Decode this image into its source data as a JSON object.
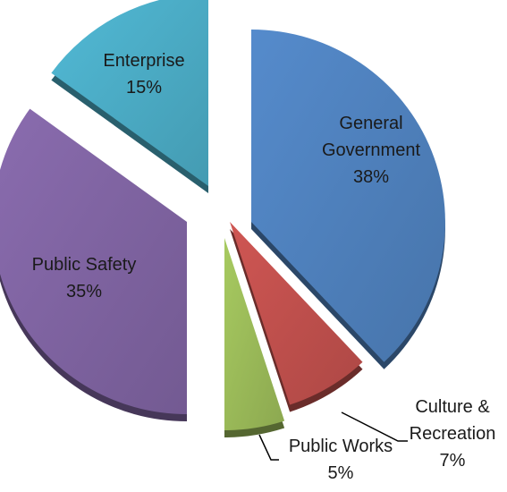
{
  "chart_data": {
    "type": "pie",
    "title": "",
    "slices": [
      {
        "name": "General Government",
        "label_lines": [
          "General",
          "Government"
        ],
        "value": 38,
        "value_label": "38%",
        "color": "#4f81bd"
      },
      {
        "name": "Culture & Recreation",
        "label_lines": [
          "Culture &",
          "Recreation"
        ],
        "value": 7,
        "value_label": "7%",
        "color": "#c0504d"
      },
      {
        "name": "Public Works",
        "label_lines": [
          "Public Works"
        ],
        "value": 5,
        "value_label": "5%",
        "color": "#9bbb59"
      },
      {
        "name": "Public Safety",
        "label_lines": [
          "Public Safety"
        ],
        "value": 35,
        "value_label": "35%",
        "color": "#8064a2"
      },
      {
        "name": "Enterprise",
        "label_lines": [
          "Enterprise"
        ],
        "value": 15,
        "value_label": "15%",
        "color": "#4bacc6"
      }
    ],
    "exploded": true,
    "style": "3d"
  }
}
